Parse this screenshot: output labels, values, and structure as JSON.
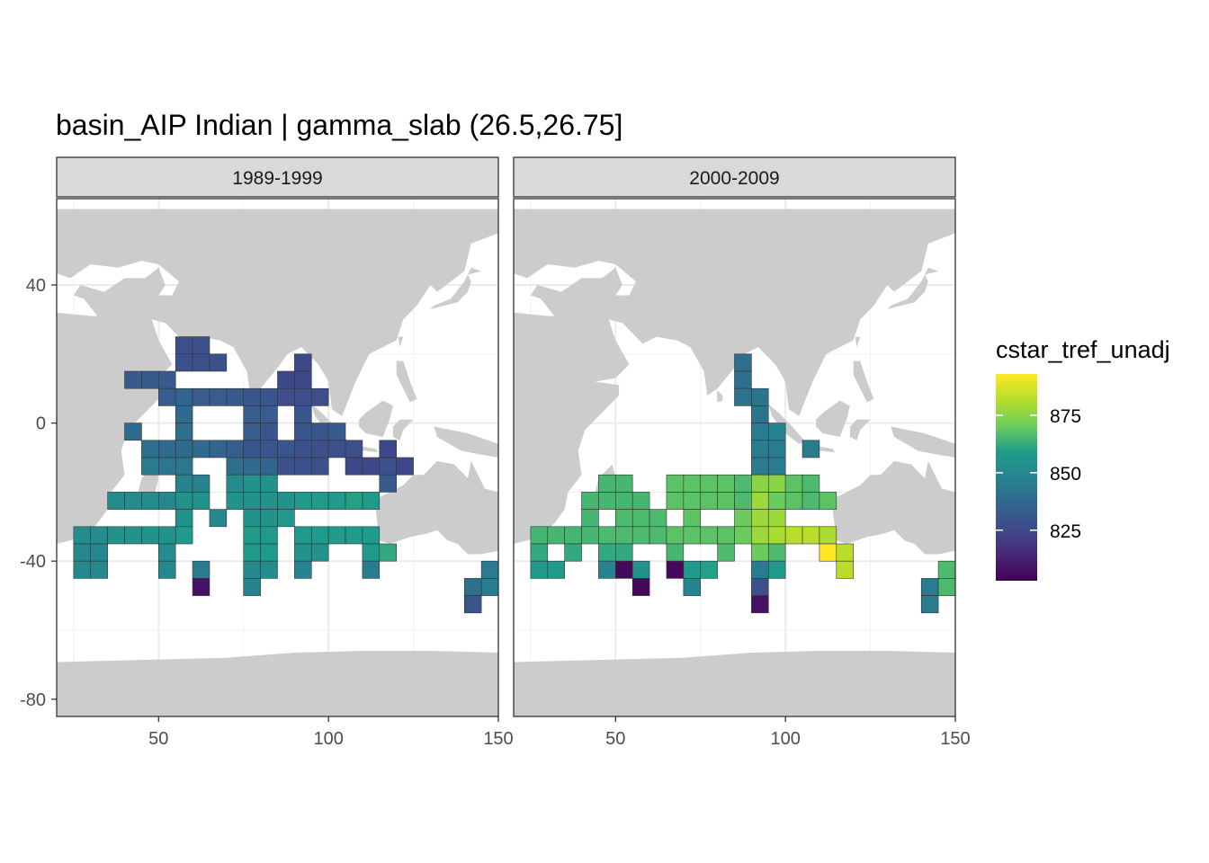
{
  "chart_data": {
    "type": "heatmap",
    "title": "basin_AIP Indian | gamma_slab (26.5,26.75]",
    "xlabel": "",
    "ylabel": "",
    "xlim": [
      20,
      150
    ],
    "ylim": [
      -85,
      65
    ],
    "x_ticks": [
      "50",
      "100",
      "150"
    ],
    "y_ticks": [
      "40",
      "0",
      "-40",
      "-80"
    ],
    "x_tick_values": [
      50,
      100,
      150
    ],
    "y_tick_values": [
      40,
      0,
      -40,
      -80
    ],
    "grid": "on",
    "cell_size_deg": 5,
    "legend": {
      "title": "cstar_tref_unadj",
      "position": "right",
      "range": [
        803,
        893
      ],
      "ticks": [
        "875",
        "850",
        "825"
      ],
      "tick_values": [
        875,
        850,
        825
      ],
      "colors": [
        "#440154",
        "#482777",
        "#3F4A8A",
        "#31678E",
        "#26838F",
        "#1F9D8A",
        "#6CCE5A",
        "#B6DE2B",
        "#FEE825"
      ]
    },
    "panels": [
      {
        "label": "1989-1999",
        "cells": [
          [
            57.5,
            22.5,
            828
          ],
          [
            62.5,
            22.5,
            828
          ],
          [
            57.5,
            17.5,
            828
          ],
          [
            62.5,
            17.5,
            828
          ],
          [
            67.5,
            17.5,
            828
          ],
          [
            92.5,
            17.5,
            825
          ],
          [
            42.5,
            12.5,
            832
          ],
          [
            47.5,
            12.5,
            832
          ],
          [
            52.5,
            12.5,
            832
          ],
          [
            87.5,
            12.5,
            825
          ],
          [
            92.5,
            12.5,
            825
          ],
          [
            52.5,
            7.5,
            833
          ],
          [
            57.5,
            7.5,
            836
          ],
          [
            62.5,
            7.5,
            833
          ],
          [
            67.5,
            7.5,
            833
          ],
          [
            72.5,
            7.5,
            832
          ],
          [
            77.5,
            7.5,
            830
          ],
          [
            82.5,
            7.5,
            830
          ],
          [
            87.5,
            7.5,
            827
          ],
          [
            92.5,
            7.5,
            827
          ],
          [
            97.5,
            7.5,
            827
          ],
          [
            57.5,
            2.5,
            838
          ],
          [
            77.5,
            2.5,
            833
          ],
          [
            82.5,
            2.5,
            833
          ],
          [
            92.5,
            2.5,
            830
          ],
          [
            42.5,
            -2.5,
            838
          ],
          [
            57.5,
            -2.5,
            840
          ],
          [
            77.5,
            -2.5,
            833
          ],
          [
            82.5,
            -2.5,
            830
          ],
          [
            92.5,
            -2.5,
            830
          ],
          [
            97.5,
            -2.5,
            830
          ],
          [
            102.5,
            -2.5,
            832
          ],
          [
            47.5,
            -7.5,
            840
          ],
          [
            52.5,
            -7.5,
            838
          ],
          [
            57.5,
            -7.5,
            838
          ],
          [
            62.5,
            -7.5,
            838
          ],
          [
            67.5,
            -7.5,
            836
          ],
          [
            72.5,
            -7.5,
            833
          ],
          [
            77.5,
            -7.5,
            830
          ],
          [
            82.5,
            -7.5,
            830
          ],
          [
            87.5,
            -7.5,
            830
          ],
          [
            92.5,
            -7.5,
            828
          ],
          [
            97.5,
            -7.5,
            828
          ],
          [
            102.5,
            -7.5,
            828
          ],
          [
            107.5,
            -7.5,
            828
          ],
          [
            117.5,
            -7.5,
            825
          ],
          [
            47.5,
            -12.5,
            845
          ],
          [
            52.5,
            -12.5,
            843
          ],
          [
            57.5,
            -12.5,
            843
          ],
          [
            72.5,
            -12.5,
            840
          ],
          [
            77.5,
            -12.5,
            838
          ],
          [
            82.5,
            -12.5,
            836
          ],
          [
            87.5,
            -12.5,
            828
          ],
          [
            92.5,
            -12.5,
            828
          ],
          [
            97.5,
            -12.5,
            828
          ],
          [
            107.5,
            -12.5,
            825
          ],
          [
            112.5,
            -12.5,
            825
          ],
          [
            117.5,
            -12.5,
            828
          ],
          [
            122.5,
            -12.5,
            825
          ],
          [
            57.5,
            -17.5,
            848
          ],
          [
            62.5,
            -17.5,
            848
          ],
          [
            72.5,
            -17.5,
            852
          ],
          [
            77.5,
            -17.5,
            855
          ],
          [
            82.5,
            -17.5,
            855
          ],
          [
            117.5,
            -17.5,
            832
          ],
          [
            37.5,
            -22.5,
            852
          ],
          [
            42.5,
            -22.5,
            852
          ],
          [
            47.5,
            -22.5,
            852
          ],
          [
            52.5,
            -22.5,
            850
          ],
          [
            57.5,
            -22.5,
            855
          ],
          [
            62.5,
            -22.5,
            855
          ],
          [
            72.5,
            -22.5,
            855
          ],
          [
            77.5,
            -22.5,
            855
          ],
          [
            82.5,
            -22.5,
            855
          ],
          [
            87.5,
            -22.5,
            855
          ],
          [
            92.5,
            -22.5,
            858
          ],
          [
            97.5,
            -22.5,
            858
          ],
          [
            102.5,
            -22.5,
            858
          ],
          [
            107.5,
            -22.5,
            860
          ],
          [
            112.5,
            -22.5,
            858
          ],
          [
            57.5,
            -27.5,
            855
          ],
          [
            67.5,
            -27.5,
            850
          ],
          [
            77.5,
            -27.5,
            855
          ],
          [
            82.5,
            -27.5,
            855
          ],
          [
            87.5,
            -27.5,
            858
          ],
          [
            27.5,
            -32.5,
            852
          ],
          [
            32.5,
            -32.5,
            852
          ],
          [
            37.5,
            -32.5,
            855
          ],
          [
            42.5,
            -32.5,
            855
          ],
          [
            47.5,
            -32.5,
            855
          ],
          [
            52.5,
            -32.5,
            855
          ],
          [
            57.5,
            -32.5,
            858
          ],
          [
            77.5,
            -32.5,
            858
          ],
          [
            82.5,
            -32.5,
            858
          ],
          [
            92.5,
            -32.5,
            858
          ],
          [
            97.5,
            -32.5,
            858
          ],
          [
            102.5,
            -32.5,
            858
          ],
          [
            107.5,
            -32.5,
            858
          ],
          [
            112.5,
            -32.5,
            858
          ],
          [
            27.5,
            -37.5,
            850
          ],
          [
            32.5,
            -37.5,
            850
          ],
          [
            52.5,
            -37.5,
            852
          ],
          [
            77.5,
            -37.5,
            858
          ],
          [
            82.5,
            -37.5,
            858
          ],
          [
            92.5,
            -37.5,
            855
          ],
          [
            97.5,
            -37.5,
            855
          ],
          [
            112.5,
            -37.5,
            858
          ],
          [
            117.5,
            -37.5,
            862
          ],
          [
            27.5,
            -42.5,
            850
          ],
          [
            32.5,
            -42.5,
            850
          ],
          [
            52.5,
            -42.5,
            850
          ],
          [
            62.5,
            -42.5,
            845
          ],
          [
            77.5,
            -42.5,
            850
          ],
          [
            82.5,
            -42.5,
            852
          ],
          [
            92.5,
            -42.5,
            848
          ],
          [
            112.5,
            -42.5,
            845
          ],
          [
            147.5,
            -42.5,
            845
          ],
          [
            62.5,
            -47.5,
            808
          ],
          [
            77.5,
            -47.5,
            848
          ],
          [
            142.5,
            -47.5,
            840
          ],
          [
            147.5,
            -47.5,
            845
          ],
          [
            142.5,
            -52.5,
            830
          ]
        ]
      },
      {
        "label": "2000-2009",
        "cells": [
          [
            87.5,
            17.5,
            840
          ],
          [
            87.5,
            12.5,
            840
          ],
          [
            87.5,
            7.5,
            842
          ],
          [
            92.5,
            7.5,
            842
          ],
          [
            92.5,
            2.5,
            842
          ],
          [
            92.5,
            -2.5,
            845
          ],
          [
            97.5,
            -2.5,
            848
          ],
          [
            92.5,
            -7.5,
            845
          ],
          [
            97.5,
            -7.5,
            845
          ],
          [
            107.5,
            -7.5,
            845
          ],
          [
            92.5,
            -12.5,
            845
          ],
          [
            97.5,
            -12.5,
            845
          ],
          [
            42.5,
            -22.5,
            865
          ],
          [
            47.5,
            -22.5,
            865
          ],
          [
            52.5,
            -22.5,
            865
          ],
          [
            57.5,
            -22.5,
            865
          ],
          [
            67.5,
            -22.5,
            868
          ],
          [
            72.5,
            -22.5,
            868
          ],
          [
            77.5,
            -22.5,
            868
          ],
          [
            82.5,
            -22.5,
            868
          ],
          [
            87.5,
            -22.5,
            866
          ],
          [
            92.5,
            -22.5,
            878
          ],
          [
            97.5,
            -22.5,
            870
          ],
          [
            102.5,
            -22.5,
            868
          ],
          [
            107.5,
            -22.5,
            866
          ],
          [
            112.5,
            -22.5,
            868
          ],
          [
            47.5,
            -17.5,
            865
          ],
          [
            52.5,
            -17.5,
            865
          ],
          [
            67.5,
            -17.5,
            868
          ],
          [
            72.5,
            -17.5,
            868
          ],
          [
            77.5,
            -17.5,
            868
          ],
          [
            82.5,
            -17.5,
            868
          ],
          [
            87.5,
            -17.5,
            866
          ],
          [
            92.5,
            -17.5,
            875
          ],
          [
            97.5,
            -17.5,
            875
          ],
          [
            102.5,
            -17.5,
            868
          ],
          [
            107.5,
            -17.5,
            866
          ],
          [
            42.5,
            -27.5,
            865
          ],
          [
            52.5,
            -27.5,
            866
          ],
          [
            57.5,
            -27.5,
            866
          ],
          [
            62.5,
            -27.5,
            866
          ],
          [
            72.5,
            -27.5,
            868
          ],
          [
            87.5,
            -27.5,
            870
          ],
          [
            92.5,
            -27.5,
            878
          ],
          [
            97.5,
            -27.5,
            878
          ],
          [
            27.5,
            -32.5,
            865
          ],
          [
            32.5,
            -32.5,
            865
          ],
          [
            37.5,
            -32.5,
            865
          ],
          [
            42.5,
            -32.5,
            865
          ],
          [
            47.5,
            -32.5,
            866
          ],
          [
            52.5,
            -32.5,
            866
          ],
          [
            57.5,
            -32.5,
            866
          ],
          [
            62.5,
            -32.5,
            866
          ],
          [
            67.5,
            -32.5,
            868
          ],
          [
            72.5,
            -32.5,
            868
          ],
          [
            77.5,
            -32.5,
            868
          ],
          [
            82.5,
            -32.5,
            868
          ],
          [
            87.5,
            -32.5,
            870
          ],
          [
            92.5,
            -32.5,
            878
          ],
          [
            97.5,
            -32.5,
            880
          ],
          [
            102.5,
            -32.5,
            882
          ],
          [
            107.5,
            -32.5,
            882
          ],
          [
            112.5,
            -32.5,
            880
          ],
          [
            27.5,
            -37.5,
            862
          ],
          [
            37.5,
            -37.5,
            862
          ],
          [
            47.5,
            -37.5,
            862
          ],
          [
            52.5,
            -37.5,
            862
          ],
          [
            67.5,
            -37.5,
            865
          ],
          [
            82.5,
            -37.5,
            866
          ],
          [
            92.5,
            -37.5,
            870
          ],
          [
            97.5,
            -37.5,
            866
          ],
          [
            112.5,
            -37.5,
            893
          ],
          [
            117.5,
            -37.5,
            882
          ],
          [
            27.5,
            -42.5,
            858
          ],
          [
            32.5,
            -42.5,
            858
          ],
          [
            47.5,
            -42.5,
            848
          ],
          [
            52.5,
            -42.5,
            805
          ],
          [
            57.5,
            -42.5,
            855
          ],
          [
            67.5,
            -42.5,
            805
          ],
          [
            72.5,
            -42.5,
            858
          ],
          [
            77.5,
            -42.5,
            860
          ],
          [
            92.5,
            -42.5,
            845
          ],
          [
            97.5,
            -42.5,
            858
          ],
          [
            117.5,
            -42.5,
            882
          ],
          [
            147.5,
            -42.5,
            866
          ],
          [
            57.5,
            -47.5,
            805
          ],
          [
            72.5,
            -47.5,
            848
          ],
          [
            92.5,
            -47.5,
            828
          ],
          [
            142.5,
            -47.5,
            845
          ],
          [
            147.5,
            -47.5,
            866
          ],
          [
            92.5,
            -52.5,
            808
          ],
          [
            142.5,
            -52.5,
            845
          ]
        ]
      }
    ]
  }
}
